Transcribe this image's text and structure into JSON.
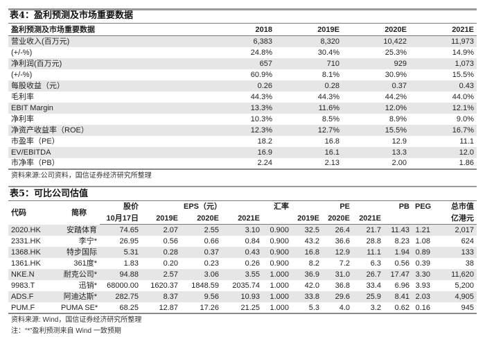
{
  "table4": {
    "title": "表4：盈利预测及市场重要数据",
    "headers": [
      "盈利预测及市场重要数据",
      "2018",
      "2019E",
      "2020E",
      "2021E"
    ],
    "rows": [
      [
        "营业收入(百万元)",
        "6,383",
        "8,320",
        "10,422",
        "11,973"
      ],
      [
        "(+/-%)",
        "24.8%",
        "30.4%",
        "25.3%",
        "14.9%"
      ],
      [
        "净利润(百万元)",
        "657",
        "710",
        "929",
        "1,073"
      ],
      [
        "(+/-%)",
        "60.9%",
        "8.1%",
        "30.9%",
        "15.5%"
      ],
      [
        "每股收益（元）",
        "0.26",
        "0.28",
        "0.37",
        "0.43"
      ],
      [
        "毛利率",
        "44.3%",
        "44.3%",
        "44.2%",
        "44.0%"
      ],
      [
        "EBIT Margin",
        "13.3%",
        "11.6%",
        "12.0%",
        "12.1%"
      ],
      [
        "净利率",
        "10.3%",
        "8.5%",
        "8.9%",
        "9.0%"
      ],
      [
        "净资产收益率（ROE）",
        "12.3%",
        "12.7%",
        "15.5%",
        "16.7%"
      ],
      [
        "市盈率（PE）",
        "18.2",
        "16.8",
        "12.9",
        "11.1"
      ],
      [
        "EV/EBITDA",
        "16.9",
        "16.1",
        "13.3",
        "12.0"
      ],
      [
        "市净率（PB）",
        "2.24",
        "2.13",
        "2.00",
        "1.86"
      ]
    ],
    "source": "资料来源:公司资料，国信证券经济研究所整理"
  },
  "table5": {
    "title": "表5：可比公司估值",
    "header_top": {
      "code": "代码",
      "name": "简称",
      "price": "股价",
      "eps": "EPS（元）",
      "fx": "汇率",
      "pe": "PE",
      "pb": "PB",
      "peg": "PEG",
      "mcap": "总市值"
    },
    "header_bottom": {
      "price_date": "10月17日",
      "eps19": "2019E",
      "eps20": "2020E",
      "eps21": "2021E",
      "pe19": "2019E",
      "pe20": "2020E",
      "pe21": "2021E",
      "mcap_unit": "亿港元"
    },
    "rows": [
      [
        "2020.HK",
        "安踏体育",
        "74.65",
        "2.07",
        "2.55",
        "3.10",
        "0.900",
        "32.5",
        "26.4",
        "21.7",
        "11.43",
        "1.21",
        "2,017"
      ],
      [
        "2331.HK",
        "李宁*",
        "26.95",
        "0.56",
        "0.66",
        "0.84",
        "0.900",
        "43.2",
        "36.6",
        "28.8",
        "8.23",
        "1.08",
        "624"
      ],
      [
        "1368.HK",
        "特步国际",
        "5.31",
        "0.28",
        "0.37",
        "0.43",
        "0.900",
        "16.8",
        "12.9",
        "11.1",
        "1.94",
        "0.89",
        "133"
      ],
      [
        "1361.HK",
        "361度*",
        "1.83",
        "0.20",
        "0.23",
        "0.26",
        "0.900",
        "8.2",
        "7.2",
        "6.3",
        "0.56",
        "0.39",
        "38"
      ],
      [
        "NKE.N",
        "耐克公司*",
        "94.88",
        "2.57",
        "3.06",
        "3.55",
        "1.000",
        "36.9",
        "31.0",
        "26.7",
        "17.47",
        "3.30",
        "11,620"
      ],
      [
        "9983.T",
        "迅销*",
        "68000.00",
        "1620.37",
        "1848.59",
        "2035.74",
        "1.000",
        "42.0",
        "36.8",
        "33.4",
        "6.96",
        "3.93",
        "5,200"
      ],
      [
        "ADS.F",
        "阿迪达斯*",
        "282.75",
        "8.37",
        "9.56",
        "10.93",
        "1.000",
        "33.8",
        "29.6",
        "25.9",
        "8.41",
        "2.03",
        "4,905"
      ],
      [
        "PUM.F",
        "PUMA SE*",
        "68.25",
        "12.87",
        "17.26",
        "21.25",
        "1.000",
        "5.3",
        "4.0",
        "3.2",
        "0.62",
        "0.16",
        "945"
      ]
    ],
    "source": "资料来源: Wind，国信证券经济研究所整理",
    "note": "注：“*”盈利预测来自 Wind 一致预期"
  }
}
